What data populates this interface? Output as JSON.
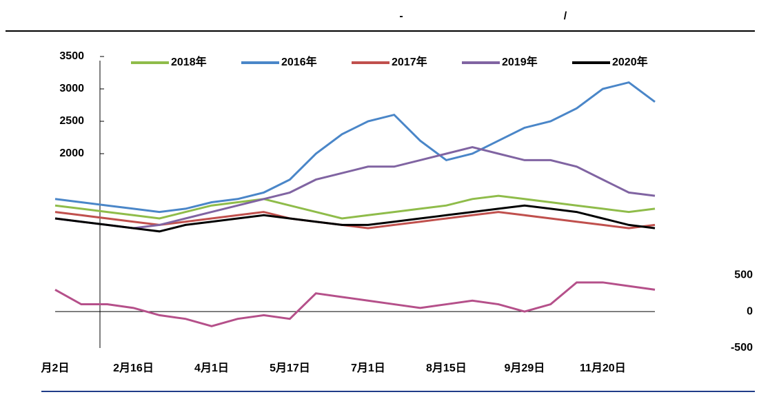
{
  "chart_data": {
    "type": "line",
    "title": "-",
    "subtitle": "/",
    "categories": [
      "月2日",
      null,
      null,
      "2月16日",
      null,
      null,
      "4月1日",
      null,
      null,
      "5月17日",
      null,
      null,
      "7月1日",
      null,
      null,
      "8月15日",
      null,
      null,
      "9月29日",
      null,
      null,
      "11月20日",
      null,
      null
    ],
    "ylim": [
      -1000,
      3500
    ],
    "yticks": [
      2000,
      2500,
      3000,
      3500
    ],
    "y2lim": [
      -500,
      3500
    ],
    "y2ticks": [
      -500,
      0,
      500
    ],
    "series": [
      {
        "name": "2018年",
        "color": "#8fbc4a",
        "values": [
          1200,
          1150,
          1100,
          1050,
          1000,
          1100,
          1200,
          1250,
          1300,
          1200,
          1100,
          1000,
          1050,
          1100,
          1150,
          1200,
          1300,
          1350,
          1300,
          1250,
          1200,
          1150,
          1100,
          1150
        ]
      },
      {
        "name": "2016年",
        "color": "#4a86c8",
        "values": [
          1300,
          1250,
          1200,
          1150,
          1100,
          1150,
          1250,
          1300,
          1400,
          1600,
          2000,
          2300,
          2500,
          2600,
          2200,
          1900,
          2000,
          2200,
          2400,
          2500,
          2700,
          3000,
          3100,
          2800
        ]
      },
      {
        "name": "2017年",
        "color": "#c0504d",
        "values": [
          1100,
          1050,
          1000,
          950,
          900,
          950,
          1000,
          1050,
          1100,
          1000,
          950,
          900,
          850,
          900,
          950,
          1000,
          1050,
          1100,
          1050,
          1000,
          950,
          900,
          850,
          900
        ]
      },
      {
        "name": "2019年",
        "color": "#8064a2",
        "values": [
          1000,
          950,
          900,
          850,
          900,
          1000,
          1100,
          1200,
          1300,
          1400,
          1600,
          1700,
          1800,
          1800,
          1900,
          2000,
          2100,
          2000,
          1900,
          1900,
          1800,
          1600,
          1400,
          1350
        ]
      },
      {
        "name": "2020年",
        "color": "#000000",
        "values": [
          1000,
          950,
          900,
          850,
          800,
          900,
          950,
          1000,
          1050,
          1000,
          950,
          900,
          900,
          950,
          1000,
          1050,
          1100,
          1150,
          1200,
          1150,
          1100,
          1000,
          900,
          850
        ]
      },
      {
        "color": "#b5508a",
        "axis": "y2",
        "values": [
          300,
          100,
          100,
          50,
          -50,
          -100,
          -200,
          -100,
          -50,
          -100,
          250,
          200,
          150,
          100,
          50,
          100,
          150,
          100,
          0,
          100,
          400,
          400,
          350,
          300
        ]
      }
    ]
  }
}
